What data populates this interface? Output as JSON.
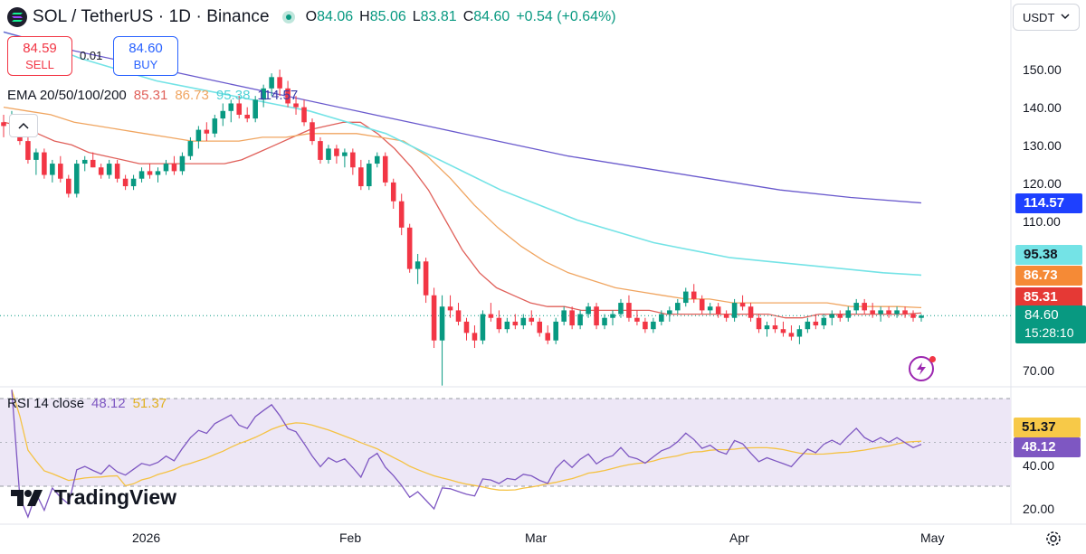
{
  "header": {
    "symbol_title": "SOL / TetherUS · 1D · Binance",
    "ohlc": [
      {
        "label": "O",
        "value": "84.06"
      },
      {
        "label": "H",
        "value": "85.06"
      },
      {
        "label": "L",
        "value": "83.81"
      },
      {
        "label": "C",
        "value": "84.60"
      },
      {
        "label": "",
        "value": "+0.54 (+0.64%)"
      }
    ]
  },
  "trade": {
    "sell_price": "84.59",
    "sell_label": "SELL",
    "spread": "0.01",
    "buy_price": "84.60",
    "buy_label": "BUY"
  },
  "currency": "USDT",
  "ema_legend": {
    "label": "EMA 20/50/100/200",
    "values": [
      "85.31",
      "86.73",
      "95.38",
      "114.57"
    ]
  },
  "rsi_legend": {
    "label": "RSI 14 close",
    "values": [
      "48.12",
      "51.37"
    ]
  },
  "price_axis_ticks": [
    "150.00",
    "140.00",
    "130.00",
    "120.00",
    "110.00",
    "70.00"
  ],
  "rsi_axis_ticks": [
    "40.00",
    "20.00"
  ],
  "time_axis": [
    "2026",
    "Feb",
    "Mar",
    "Apr",
    "May"
  ],
  "price_tags": {
    "ema200": "114.57",
    "ema100": "95.38",
    "ema50": "86.73",
    "ema20": "85.31",
    "current": "84.60",
    "countdown": "15:28:10"
  },
  "rsi_tags": {
    "ma": "51.37",
    "rsi": "48.12"
  },
  "brand": "TradingView",
  "colors": {
    "up": "#089981",
    "down": "#f23645",
    "ema20": "#e0605a",
    "ema50": "#f0a560",
    "ema100": "#74e3e6",
    "ema200": "#6a5acd",
    "rsi": "#7e57c2",
    "rsi_ma": "#f5c242",
    "rsi_band": "#ede7f6"
  },
  "icons": [
    "solana-icon",
    "live-dot-icon",
    "collapse-chevron-icon",
    "chevron-down-icon",
    "tradingview-logo-icon",
    "bolt-icon",
    "settings-icon"
  ],
  "chart_data": {
    "type": "candlestick",
    "symbol": "SOLUSDT",
    "timeframe": "1D",
    "x_range": [
      "2025-12-02",
      "2026-04-29"
    ],
    "ylim": [
      66,
      160
    ],
    "candles_ohlc": [
      [
        136,
        138,
        132,
        135
      ],
      [
        134,
        139,
        133,
        137
      ],
      [
        136,
        137,
        130,
        131
      ],
      [
        131,
        133,
        125,
        126
      ],
      [
        126,
        129,
        122,
        128
      ],
      [
        128,
        129,
        121,
        122
      ],
      [
        122,
        126,
        120,
        125
      ],
      [
        125,
        127,
        120,
        121
      ],
      [
        121,
        122,
        116,
        117
      ],
      [
        117,
        126,
        116,
        125
      ],
      [
        125,
        127,
        123,
        126
      ],
      [
        126,
        128,
        124,
        124
      ],
      [
        124,
        125,
        121,
        122
      ],
      [
        122,
        126,
        121,
        125
      ],
      [
        125,
        126,
        120,
        121
      ],
      [
        121,
        122,
        118,
        119
      ],
      [
        119,
        122,
        118,
        121
      ],
      [
        121,
        124,
        120,
        123
      ],
      [
        123,
        125,
        121,
        122
      ],
      [
        122,
        124,
        120,
        123
      ],
      [
        123,
        126,
        122,
        125
      ],
      [
        125,
        127,
        122,
        123
      ],
      [
        123,
        128,
        122,
        127
      ],
      [
        127,
        132,
        126,
        131
      ],
      [
        131,
        135,
        129,
        134
      ],
      [
        134,
        136,
        131,
        133
      ],
      [
        133,
        138,
        132,
        137
      ],
      [
        137,
        141,
        135,
        139
      ],
      [
        139,
        142,
        136,
        141
      ],
      [
        141,
        143,
        137,
        138
      ],
      [
        138,
        140,
        136,
        137
      ],
      [
        137,
        143,
        136,
        142
      ],
      [
        142,
        146,
        140,
        145
      ],
      [
        145,
        149,
        143,
        148
      ],
      [
        148,
        150,
        143,
        145
      ],
      [
        145,
        147,
        140,
        141
      ],
      [
        141,
        143,
        138,
        140
      ],
      [
        140,
        142,
        135,
        136
      ],
      [
        136,
        137,
        130,
        131
      ],
      [
        131,
        132,
        125,
        126
      ],
      [
        126,
        130,
        125,
        129
      ],
      [
        129,
        130,
        125,
        127
      ],
      [
        127,
        129,
        124,
        128
      ],
      [
        128,
        129,
        122,
        124
      ],
      [
        124,
        126,
        118,
        119
      ],
      [
        119,
        126,
        118,
        125
      ],
      [
        125,
        128,
        124,
        127
      ],
      [
        127,
        128,
        119,
        120
      ],
      [
        120,
        121,
        113,
        115
      ],
      [
        115,
        117,
        106,
        108
      ],
      [
        108,
        109,
        96,
        97
      ],
      [
        97,
        101,
        93,
        99
      ],
      [
        99,
        100,
        88,
        90
      ],
      [
        90,
        92,
        76,
        78
      ],
      [
        78,
        90,
        66,
        87
      ],
      [
        87,
        90,
        84,
        86
      ],
      [
        86,
        88,
        82,
        83
      ],
      [
        83,
        84,
        78,
        80
      ],
      [
        80,
        82,
        76,
        78
      ],
      [
        78,
        86,
        77,
        85
      ],
      [
        85,
        88,
        83,
        84
      ],
      [
        84,
        86,
        80,
        81
      ],
      [
        81,
        84,
        80,
        83
      ],
      [
        83,
        85,
        81,
        82
      ],
      [
        82,
        85,
        81,
        84
      ],
      [
        84,
        86,
        82,
        83
      ],
      [
        83,
        84,
        79,
        80
      ],
      [
        80,
        82,
        77,
        78
      ],
      [
        78,
        84,
        77,
        83
      ],
      [
        83,
        87,
        82,
        86
      ],
      [
        86,
        87,
        81,
        82
      ],
      [
        82,
        86,
        81,
        85
      ],
      [
        85,
        88,
        84,
        87
      ],
      [
        87,
        88,
        81,
        82
      ],
      [
        82,
        85,
        81,
        84
      ],
      [
        84,
        86,
        82,
        85
      ],
      [
        85,
        89,
        84,
        88
      ],
      [
        88,
        90,
        83,
        84
      ],
      [
        84,
        86,
        82,
        83
      ],
      [
        83,
        84,
        80,
        81
      ],
      [
        81,
        84,
        80,
        83
      ],
      [
        83,
        86,
        82,
        85
      ],
      [
        85,
        87,
        83,
        86
      ],
      [
        86,
        89,
        85,
        88
      ],
      [
        88,
        92,
        87,
        91
      ],
      [
        91,
        93,
        88,
        89
      ],
      [
        89,
        90,
        85,
        86
      ],
      [
        86,
        88,
        85,
        87
      ],
      [
        87,
        88,
        84,
        85
      ],
      [
        85,
        86,
        83,
        84
      ],
      [
        84,
        89,
        83,
        88
      ],
      [
        88,
        90,
        86,
        87
      ],
      [
        87,
        88,
        83,
        84
      ],
      [
        84,
        85,
        80,
        81
      ],
      [
        81,
        83,
        79,
        82
      ],
      [
        82,
        84,
        80,
        81
      ],
      [
        81,
        83,
        79,
        80
      ],
      [
        80,
        82,
        78,
        79
      ],
      [
        79,
        82,
        77,
        81
      ],
      [
        81,
        84,
        80,
        83
      ],
      [
        83,
        85,
        81,
        82
      ],
      [
        82,
        85,
        81,
        84
      ],
      [
        84,
        86,
        82,
        85
      ],
      [
        85,
        86,
        83,
        84
      ],
      [
        84,
        87,
        83,
        86
      ],
      [
        86,
        89,
        85,
        88
      ],
      [
        88,
        89,
        85,
        86
      ],
      [
        86,
        88,
        84,
        85
      ],
      [
        85,
        87,
        83,
        86
      ],
      [
        86,
        87,
        84,
        85
      ],
      [
        85,
        87,
        84,
        86
      ],
      [
        86,
        87,
        84,
        85
      ],
      [
        85,
        86,
        83,
        84
      ],
      [
        84,
        85,
        83,
        84.6
      ]
    ],
    "series": [
      {
        "name": "EMA 20",
        "last": 85.31,
        "values": [
          136,
          135,
          133,
          131,
          130,
          128,
          127,
          126,
          125,
          125,
          125,
          125,
          125,
          125,
          126,
          128,
          130,
          132,
          134,
          135,
          136,
          136,
          133,
          129,
          124,
          118,
          110,
          102,
          96,
          92,
          90,
          88,
          87,
          87,
          86,
          86,
          86,
          86,
          86,
          85,
          85,
          85,
          85,
          85,
          85,
          85,
          84,
          84,
          85,
          85,
          85,
          85,
          85,
          85,
          85.31
        ]
      },
      {
        "name": "EMA 50",
        "last": 86.73,
        "values": [
          140,
          139,
          138,
          136,
          135,
          134,
          133,
          132,
          131,
          131,
          131,
          132,
          132,
          133,
          133,
          133,
          132,
          131,
          127,
          121,
          114,
          108,
          103,
          99,
          96,
          94,
          92,
          91,
          90,
          89,
          89,
          88,
          88,
          88,
          88,
          88,
          87,
          87,
          87,
          86.73
        ]
      },
      {
        "name": "EMA 100",
        "last": 95.38,
        "values": [
          160,
          157,
          153,
          150,
          147,
          145,
          143,
          141,
          139,
          136,
          133,
          128,
          123,
          118,
          114,
          110,
          107,
          104,
          102,
          100,
          99,
          98,
          97,
          96,
          95.38
        ]
      },
      {
        "name": "EMA 200",
        "last": 114.57,
        "values": [
          160,
          155,
          151,
          147,
          143,
          139,
          135,
          131,
          127,
          124,
          121,
          118,
          116,
          114.57
        ]
      }
    ],
    "rsi": {
      "name": "RSI 14 close",
      "last": 48.12,
      "ma_last": 51.37,
      "levels": [
        70,
        30
      ],
      "ylim": [
        15,
        75
      ]
    }
  }
}
